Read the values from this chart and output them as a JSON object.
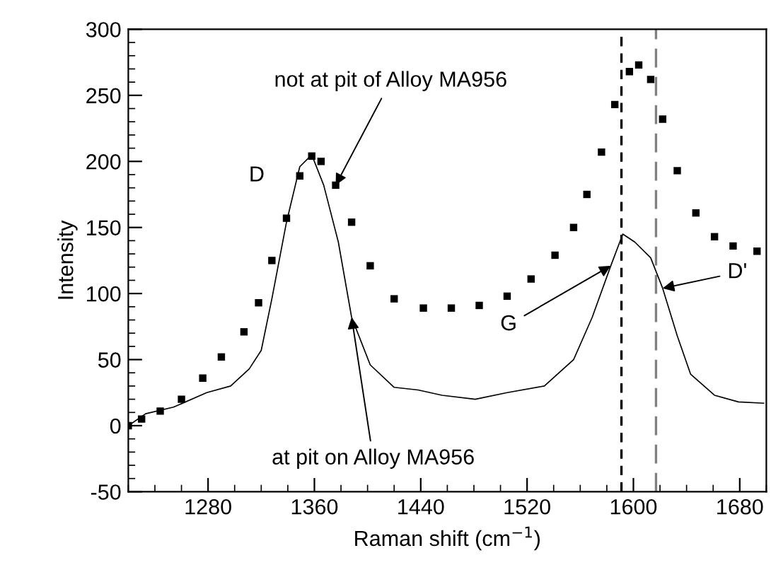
{
  "chart_data": {
    "type": "line",
    "xlabel": "Raman shift (cm$^{−1}$)",
    "ylabel": "Intensity",
    "xlim": [
      1220,
      1700
    ],
    "ylim": [
      -50,
      300
    ],
    "xticks": [
      1280,
      1360,
      1440,
      1520,
      1600,
      1680
    ],
    "yticks": [
      -50,
      0,
      50,
      100,
      150,
      200,
      250,
      300
    ],
    "grid": false,
    "legend": false,
    "series": [
      {
        "type": "scatter",
        "marker": "square",
        "color": "#000000",
        "x": [
          1220,
          1230,
          1244,
          1260,
          1276,
          1290,
          1307,
          1318,
          1328,
          1339,
          1349,
          1358,
          1365,
          1376,
          1388,
          1402,
          1420,
          1442,
          1463,
          1484,
          1505,
          1523,
          1541,
          1555,
          1565,
          1576,
          1586,
          1597,
          1604,
          1613,
          1622,
          1633,
          1647,
          1661,
          1675,
          1693
        ],
        "values": [
          0,
          5,
          11,
          20,
          36,
          52,
          71,
          93,
          125,
          157,
          189,
          204,
          200,
          182,
          154,
          121,
          96,
          89,
          89,
          91,
          98,
          111,
          129,
          150,
          175,
          207,
          243,
          268,
          273,
          262,
          232,
          193,
          161,
          143,
          136,
          132
        ]
      },
      {
        "marker": "none",
        "line_style": "solid",
        "color": "#000000",
        "x": [
          1220,
          1233,
          1254,
          1279,
          1297,
          1311,
          1320,
          1328,
          1339,
          1349,
          1358,
          1367,
          1378,
          1388,
          1402,
          1420,
          1438,
          1456,
          1481,
          1505,
          1533,
          1555,
          1569,
          1583,
          1592,
          1601,
          1613,
          1622,
          1633,
          1643,
          1661,
          1679,
          1698
        ],
        "values": [
          0,
          9,
          14,
          25,
          30,
          43,
          57,
          96,
          154,
          196,
          205,
          182,
          139,
          82,
          46,
          29,
          27,
          23,
          20,
          25,
          30,
          50,
          82,
          121,
          145,
          139,
          127,
          104,
          68,
          39,
          23,
          18,
          17
        ]
      }
    ],
    "ref_lines": [
      {
        "axis": "x",
        "value": 1591,
        "label": null,
        "color": "#000000",
        "line_style": "dashed"
      },
      {
        "axis": "x",
        "value": 1617,
        "label": null,
        "color": "#808080",
        "line_style": "dashed"
      }
    ],
    "annotations": [
      {
        "text": "not at pit of Alloy MA956",
        "x": 1376,
        "y": 182
      },
      {
        "text": "D",
        "x": 1358,
        "y": 204
      },
      {
        "text": "at pit on Alloy MA956",
        "x": 1388,
        "y": 82
      },
      {
        "text": "G",
        "x": 1583,
        "y": 121
      },
      {
        "text": "D'",
        "x": 1622,
        "y": 104
      }
    ]
  }
}
